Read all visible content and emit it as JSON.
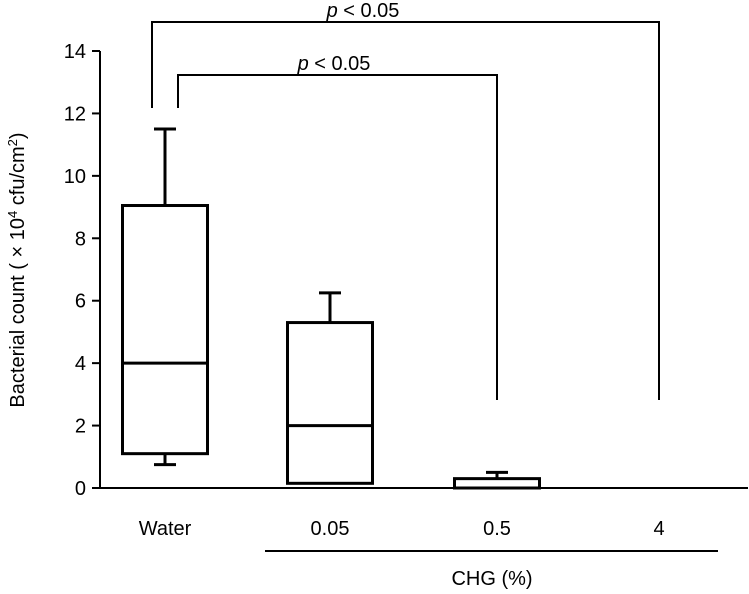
{
  "chart_data": {
    "type": "box",
    "ylabel": "Bacterial count (×10⁴ cfu/cm²)",
    "ylabel_parts": {
      "main": "Bacterial count ( × 10",
      "sup1": "4",
      "mid": " cfu/cm",
      "sup2": "2",
      "end": ")"
    },
    "group_label": "CHG (%)",
    "ylim": [
      0,
      14
    ],
    "yticks": [
      0,
      2,
      4,
      6,
      8,
      10,
      12,
      14
    ],
    "ytick_labels": [
      "0",
      "2",
      "4",
      "6",
      "8",
      "10",
      "12",
      "14"
    ],
    "categories": [
      "Water",
      "0.05",
      "0.5",
      "4"
    ],
    "boxes": [
      {
        "category": "Water",
        "whisker_low": 0.75,
        "q1": 1.1,
        "median": 4.0,
        "q3": 9.05,
        "whisker_high": 11.5
      },
      {
        "category": "0.05",
        "whisker_low": 0.15,
        "q1": 0.15,
        "median": 2.0,
        "q3": 5.3,
        "whisker_high": 6.25
      },
      {
        "category": "0.5",
        "whisker_low": 0.0,
        "q1": 0.0,
        "median": 0.0,
        "q3": 0.3,
        "whisker_high": 0.5
      },
      {
        "category": "4",
        "whisker_low": 0.0,
        "q1": 0.0,
        "median": 0.0,
        "q3": 0.0,
        "whisker_high": 0.0
      }
    ],
    "significance": [
      {
        "from": "Water",
        "to": "4",
        "label_prefix": "p",
        "label_suffix": " < 0.05"
      },
      {
        "from": "Water",
        "to": "0.5",
        "label_prefix": "p",
        "label_suffix": " < 0.05"
      }
    ]
  }
}
